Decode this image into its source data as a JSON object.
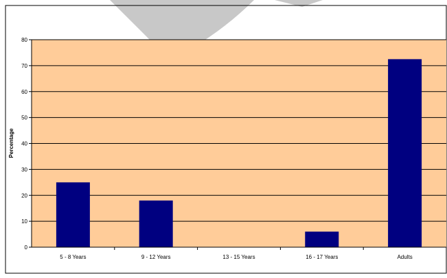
{
  "chart_data": {
    "type": "bar",
    "title": "",
    "xlabel": "",
    "ylabel": "Percentage",
    "categories": [
      "5 - 8 Years",
      "9 - 12 Years",
      "13 - 15 Years",
      "16 - 17 Years",
      "Adults"
    ],
    "values": [
      25,
      18,
      0,
      6,
      72.5
    ],
    "ylim": [
      0,
      80
    ],
    "yticks": [
      0,
      10,
      20,
      30,
      40,
      50,
      60,
      70,
      80
    ],
    "grid": true,
    "legend": "none",
    "colors": {
      "bar": "#000080",
      "plot_background": "#FFCC99",
      "gridline": "#000000",
      "watermark": "#C0C0C0"
    }
  }
}
